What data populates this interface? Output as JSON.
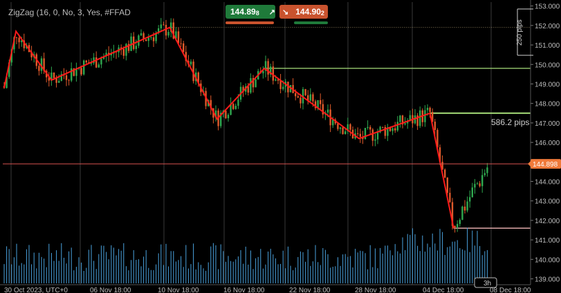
{
  "indicator_label": "ZigZag (16, 0, No, 3, Yes, #FFAD",
  "sell_button": {
    "price": "144.89",
    "sup": "8",
    "arrow": "↗"
  },
  "buy_button": {
    "price": "144.90",
    "sup": "2",
    "arrow": "↘"
  },
  "current_price_label": "144.898",
  "pips_label": "586.2 pips",
  "scale_label": "250 pips",
  "timeframe_label": "3h",
  "colors": {
    "background": "#000000",
    "bull": "#2fa84f",
    "bear": "#e05a2b",
    "zigzag": "#ff1a1a",
    "volume": "#4aa3df",
    "level_line": "#a8e07a",
    "price_line": "#d9534f",
    "price_badge": "#f07a3a"
  },
  "chart_data": {
    "type": "candlestick",
    "title": "",
    "y_ticks": [
      139.0,
      140.0,
      141.0,
      142.0,
      143.0,
      144.0,
      145.0,
      146.0,
      147.0,
      148.0,
      149.0,
      150.0,
      151.0,
      152.0,
      153.0
    ],
    "ylim": [
      138.7,
      153.2
    ],
    "x_ticks": [
      "30 Oct 2023, UTC+0",
      "06 Nov 18:00",
      "10 Nov 18:00",
      "16 Nov 18:00",
      "22 Nov 18:00",
      "28 Nov 18:00",
      "04 Dec 18:00",
      "08 Dec 18:00"
    ],
    "current_price": 144.898,
    "zigzag": [
      {
        "time": "30 Oct 2023",
        "price": 148.8
      },
      {
        "time": "31 Oct 2023",
        "price": 151.7
      },
      {
        "time": "03 Nov 2023",
        "price": 149.2
      },
      {
        "time": "13 Nov 2023",
        "price": 151.9
      },
      {
        "time": "17 Nov 2023",
        "price": 147.2
      },
      {
        "time": "21 Nov 2023",
        "price": 149.8
      },
      {
        "time": "29 Nov 2023",
        "price": 146.2
      },
      {
        "time": "05 Dec 2023",
        "price": 147.5
      },
      {
        "time": "07 Dec 2023",
        "price": 141.6
      }
    ],
    "levels": [
      {
        "price": 149.8,
        "from": "21 Nov 2023"
      },
      {
        "price": 147.5,
        "from": "05 Dec 2023"
      },
      {
        "price": 141.6,
        "from": "07 Dec 2023"
      }
    ],
    "level_dotted": {
      "price": 151.9,
      "from": "13 Nov 2023"
    },
    "volume_range": [
      0,
      100
    ],
    "grid": true
  }
}
